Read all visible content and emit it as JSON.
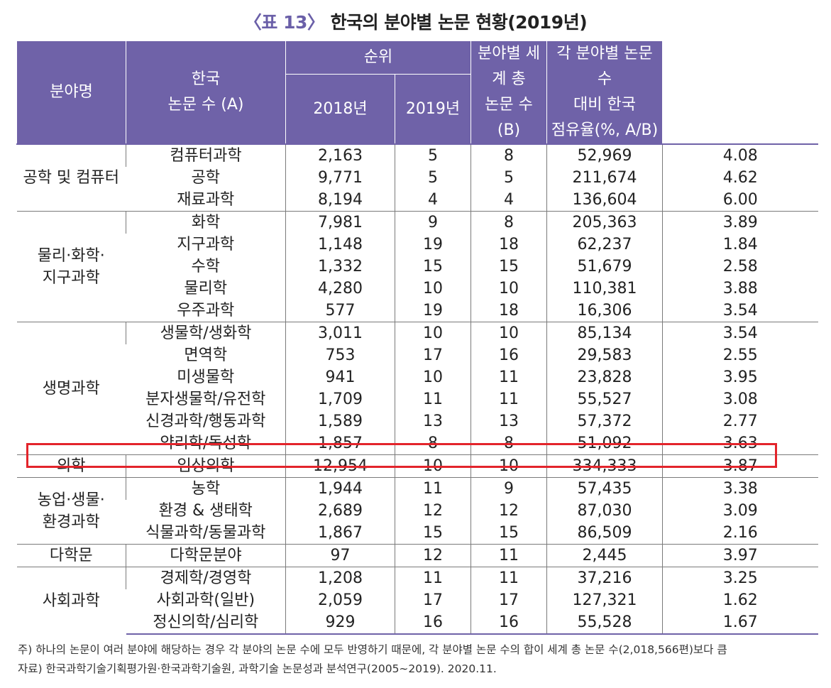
{
  "title": {
    "number": "〈표 13〉",
    "text": "한국의 분야별 논문 현황(2019년)"
  },
  "header": {
    "field": "분야명",
    "korea_count_l1": "한국",
    "korea_count_l2": "논문 수 (A)",
    "rank": "순위",
    "rank_2018": "2018년",
    "rank_2019": "2019년",
    "world_l1": "분야별 세계 총",
    "world_l2": "논문 수 (B)",
    "share_l1": "각 분야별 논문 수",
    "share_l2": "대비 한국",
    "share_l3": "점유율(%, A/B)"
  },
  "groups": [
    {
      "category": "공학 및 컴퓨터",
      "rows": [
        {
          "field": "컴퓨터과학",
          "korea": "2,163",
          "rank2018": "5",
          "rank2019": "8",
          "world": "52,969",
          "share": "4.08"
        },
        {
          "field": "공학",
          "korea": "9,771",
          "rank2018": "5",
          "rank2019": "5",
          "world": "211,674",
          "share": "4.62"
        },
        {
          "field": "재료과학",
          "korea": "8,194",
          "rank2018": "4",
          "rank2019": "4",
          "world": "136,604",
          "share": "6.00"
        }
      ]
    },
    {
      "category": "물리·화학·\n지구과학",
      "rows": [
        {
          "field": "화학",
          "korea": "7,981",
          "rank2018": "9",
          "rank2019": "8",
          "world": "205,363",
          "share": "3.89"
        },
        {
          "field": "지구과학",
          "korea": "1,148",
          "rank2018": "19",
          "rank2019": "18",
          "world": "62,237",
          "share": "1.84"
        },
        {
          "field": "수학",
          "korea": "1,332",
          "rank2018": "15",
          "rank2019": "15",
          "world": "51,679",
          "share": "2.58"
        },
        {
          "field": "물리학",
          "korea": "4,280",
          "rank2018": "10",
          "rank2019": "10",
          "world": "110,381",
          "share": "3.88"
        },
        {
          "field": "우주과학",
          "korea": "577",
          "rank2018": "19",
          "rank2019": "18",
          "world": "16,306",
          "share": "3.54"
        }
      ]
    },
    {
      "category": "생명과학",
      "rows": [
        {
          "field": "생물학/생화학",
          "korea": "3,011",
          "rank2018": "10",
          "rank2019": "10",
          "world": "85,134",
          "share": "3.54"
        },
        {
          "field": "면역학",
          "korea": "753",
          "rank2018": "17",
          "rank2019": "16",
          "world": "29,583",
          "share": "2.55"
        },
        {
          "field": "미생물학",
          "korea": "941",
          "rank2018": "10",
          "rank2019": "11",
          "world": "23,828",
          "share": "3.95"
        },
        {
          "field": "분자생물학/유전학",
          "korea": "1,709",
          "rank2018": "11",
          "rank2019": "11",
          "world": "55,527",
          "share": "3.08"
        },
        {
          "field": "신경과학/행동과학",
          "korea": "1,589",
          "rank2018": "13",
          "rank2019": "13",
          "world": "57,372",
          "share": "2.77"
        },
        {
          "field": "약리학/독성학",
          "korea": "1,857",
          "rank2018": "8",
          "rank2019": "8",
          "world": "51,092",
          "share": "3.63"
        }
      ]
    },
    {
      "category": "의학",
      "rows": [
        {
          "field": "임상의학",
          "korea": "12,954",
          "rank2018": "10",
          "rank2019": "10",
          "world": "334,333",
          "share": "3.87"
        }
      ]
    },
    {
      "category": "농업·생물·\n환경과학",
      "rows": [
        {
          "field": "농학",
          "korea": "1,944",
          "rank2018": "11",
          "rank2019": "9",
          "world": "57,435",
          "share": "3.38"
        },
        {
          "field": "환경 & 생태학",
          "korea": "2,689",
          "rank2018": "12",
          "rank2019": "12",
          "world": "87,030",
          "share": "3.09"
        },
        {
          "field": "식물과학/동물과학",
          "korea": "1,867",
          "rank2018": "15",
          "rank2019": "15",
          "world": "86,509",
          "share": "2.16"
        }
      ]
    },
    {
      "category": "다학문",
      "rows": [
        {
          "field": "다학문분야",
          "korea": "97",
          "rank2018": "12",
          "rank2019": "11",
          "world": "2,445",
          "share": "3.97"
        }
      ]
    },
    {
      "category": "사회과학",
      "rows": [
        {
          "field": "경제학/경영학",
          "korea": "1,208",
          "rank2018": "11",
          "rank2019": "11",
          "world": "37,216",
          "share": "3.25"
        },
        {
          "field": "사회과학(일반)",
          "korea": "2,059",
          "rank2018": "17",
          "rank2019": "17",
          "world": "127,321",
          "share": "1.62"
        },
        {
          "field": "정신의학/심리학",
          "korea": "929",
          "rank2018": "16",
          "rank2019": "16",
          "world": "55,528",
          "share": "1.67"
        }
      ]
    }
  ],
  "highlight_color": "#e3242b",
  "header_color": "#6f62a8",
  "notes": {
    "note": "주) 하나의 논문이 여러 분야에 해당하는 경우 각 분야의 논문 수에 모두 반영하기 때문에, 각 분야별 논문 수의 합이 세계 총 논문 수(2,018,566편)보다 큼",
    "source": "자료) 한국과학기술기획평가원·한국과학기술원, 과학기술 논문성과 분석연구(2005∼2019). 2020.11."
  }
}
